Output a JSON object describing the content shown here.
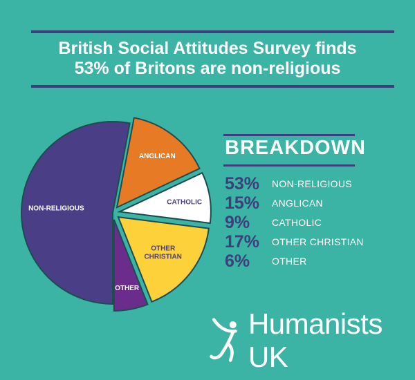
{
  "title": {
    "line1": "British Social Attitudes Survey finds",
    "line2": "53% of Britons are non-religious"
  },
  "chart_data": {
    "type": "pie",
    "title": "",
    "slices": [
      {
        "label": "NON-RELIGIOUS",
        "value": 53,
        "color": "#4a3e86",
        "label_color": "#ffffff",
        "exploded": false
      },
      {
        "label": "ANGLICAN",
        "value": 15,
        "color": "#e67a25",
        "label_color": "#ffffff",
        "exploded": true
      },
      {
        "label": "CATHOLIC",
        "value": 9,
        "color": "#ffffff",
        "label_color": "#4a3e86",
        "exploded": true
      },
      {
        "label": "OTHER CHRISTIAN",
        "value": 17,
        "color": "#fcd13a",
        "label_color": "#4a3e86",
        "exploded": true
      },
      {
        "label": "OTHER",
        "value": 6,
        "color": "#6b2d8c",
        "label_color": "#ffffff",
        "exploded": true
      }
    ]
  },
  "breakdown": {
    "title": "BREAKDOWN",
    "items": [
      {
        "pct": "53%",
        "label": "NON-RELIGIOUS"
      },
      {
        "pct": "15%",
        "label": "ANGLICAN"
      },
      {
        "pct": "9%",
        "label": "CATHOLIC"
      },
      {
        "pct": "17%",
        "label": "OTHER CHRISTIAN"
      },
      {
        "pct": "6%",
        "label": "OTHER"
      }
    ]
  },
  "brand": {
    "name": "Humanists UK",
    "logo_icon": "humanist-figure-icon"
  }
}
